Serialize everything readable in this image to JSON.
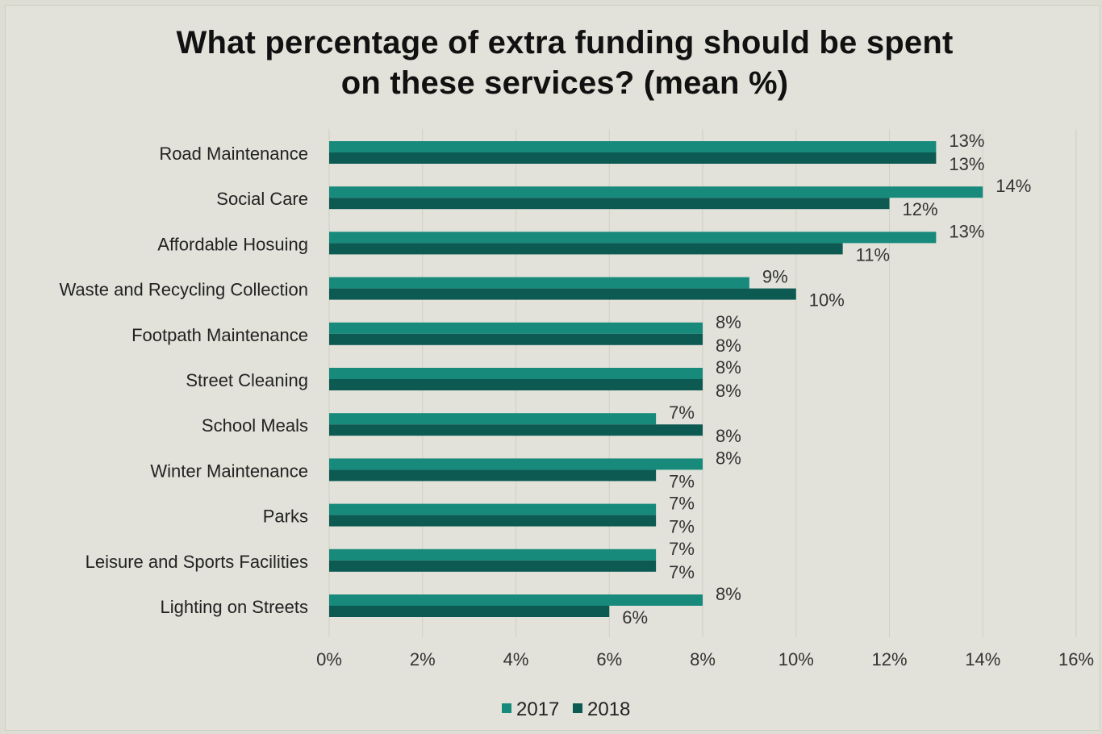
{
  "chart_data": {
    "type": "bar",
    "orientation": "horizontal",
    "title": "What percentage of extra funding should be spent on these services? (mean %)",
    "title_lines": [
      "What percentage of extra funding should be spent",
      "on these services? (mean %)"
    ],
    "categories": [
      "Road Maintenance",
      "Social Care",
      "Affordable Hosuing",
      "Waste and Recycling Collection",
      "Footpath Maintenance",
      "Street Cleaning",
      "School Meals",
      "Winter Maintenance",
      "Parks",
      "Leisure and Sports Facilities",
      "Lighting on Streets"
    ],
    "series": [
      {
        "name": "2017",
        "color": "#178a7c",
        "values": [
          13,
          14,
          13,
          9,
          8,
          8,
          7,
          8,
          7,
          7,
          8
        ],
        "labels": [
          "13%",
          "14%",
          "13%",
          "9%",
          "8%",
          "8%",
          "7%",
          "8%",
          "7%",
          "7%",
          "8%"
        ]
      },
      {
        "name": "2018",
        "color": "#0d5a53",
        "values": [
          13,
          12,
          11,
          10,
          8,
          8,
          8,
          7,
          7,
          7,
          6
        ],
        "labels": [
          "13%",
          "12%",
          "11%",
          "10%",
          "8%",
          "8%",
          "8%",
          "7%",
          "7%",
          "7%",
          "6%"
        ]
      }
    ],
    "xlim": [
      0,
      16
    ],
    "x_ticks": [
      "0%",
      "2%",
      "4%",
      "6%",
      "8%",
      "10%",
      "12%",
      "14%",
      "16%"
    ],
    "grid": true,
    "legend_position": "bottom"
  }
}
